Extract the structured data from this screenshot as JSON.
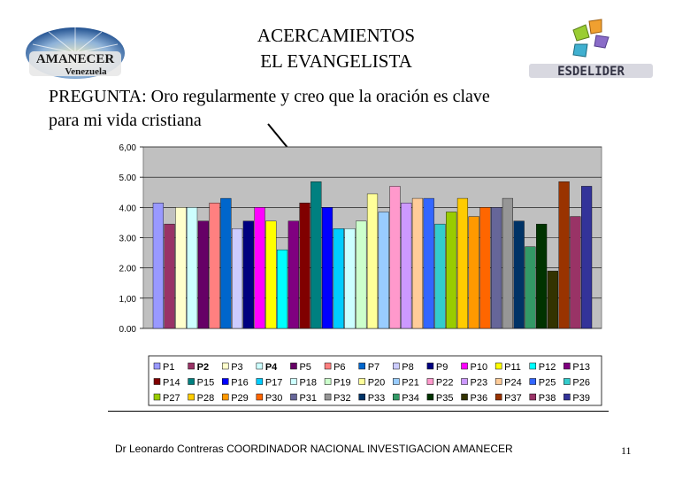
{
  "header": {
    "title_line1": "ACERCAMIENTOS",
    "title_line2": "EL EVANGELISTA"
  },
  "logos": {
    "left_text_main": "AMANECER",
    "left_text_sub": "Venezuela",
    "right_text": "ESDELIDER"
  },
  "question": {
    "line1": "PREGUNTA: Oro regularmente y creo que la oración es clave",
    "line2": "para mi vida cristiana"
  },
  "footer": {
    "credit": "Dr Leonardo Contreras   COORDINADOR NACIONAL INVESTIGACION AMANECER",
    "page_number": "11"
  },
  "chart_data": {
    "type": "bar",
    "ylim": [
      0,
      6
    ],
    "yticks": [
      "0.00",
      "1,00",
      "2.00",
      "3.00",
      "4.00",
      "5.00",
      "6,00"
    ],
    "grid": true,
    "legend_placement": "bottom",
    "plot_background": "#c0c0c0",
    "series": [
      {
        "name": "P1",
        "value": 4.15,
        "color": "#9999ff"
      },
      {
        "name": "P2",
        "value": 3.45,
        "color": "#993366"
      },
      {
        "name": "P3",
        "value": 4.0,
        "color": "#ffffcc"
      },
      {
        "name": "P4",
        "value": 4.0,
        "color": "#ccffff"
      },
      {
        "name": "P5",
        "value": 3.55,
        "color": "#660066"
      },
      {
        "name": "P6",
        "value": 4.15,
        "color": "#ff8080"
      },
      {
        "name": "P7",
        "value": 4.3,
        "color": "#0066cc"
      },
      {
        "name": "P8",
        "value": 3.3,
        "color": "#ccccff"
      },
      {
        "name": "P9",
        "value": 3.55,
        "color": "#000080"
      },
      {
        "name": "P10",
        "value": 4.0,
        "color": "#ff00ff"
      },
      {
        "name": "P11",
        "value": 3.55,
        "color": "#ffff00"
      },
      {
        "name": "P12",
        "value": 2.6,
        "color": "#00ffff"
      },
      {
        "name": "P13",
        "value": 3.55,
        "color": "#800080"
      },
      {
        "name": "P14",
        "value": 4.15,
        "color": "#800000"
      },
      {
        "name": "P15",
        "value": 4.85,
        "color": "#008080"
      },
      {
        "name": "P16",
        "value": 4.0,
        "color": "#0000ff"
      },
      {
        "name": "P17",
        "value": 3.3,
        "color": "#00ccff"
      },
      {
        "name": "P18",
        "value": 3.3,
        "color": "#ccffff"
      },
      {
        "name": "P19",
        "value": 3.55,
        "color": "#ccffcc"
      },
      {
        "name": "P20",
        "value": 4.45,
        "color": "#ffff99"
      },
      {
        "name": "P21",
        "value": 3.85,
        "color": "#99ccff"
      },
      {
        "name": "P22",
        "value": 4.7,
        "color": "#ff99cc"
      },
      {
        "name": "P23",
        "value": 4.15,
        "color": "#cc99ff"
      },
      {
        "name": "P24",
        "value": 4.3,
        "color": "#ffcc99"
      },
      {
        "name": "P25",
        "value": 4.3,
        "color": "#3366ff"
      },
      {
        "name": "P26",
        "value": 3.45,
        "color": "#33cccc"
      },
      {
        "name": "P27",
        "value": 3.85,
        "color": "#99cc00"
      },
      {
        "name": "P28",
        "value": 4.3,
        "color": "#ffcc00"
      },
      {
        "name": "P29",
        "value": 3.7,
        "color": "#ff9900"
      },
      {
        "name": "P30",
        "value": 4.0,
        "color": "#ff6600"
      },
      {
        "name": "P31",
        "value": 4.0,
        "color": "#666699"
      },
      {
        "name": "P32",
        "value": 4.3,
        "color": "#969696"
      },
      {
        "name": "P33",
        "value": 3.55,
        "color": "#003366"
      },
      {
        "name": "P34",
        "value": 2.7,
        "color": "#339966"
      },
      {
        "name": "P35",
        "value": 3.45,
        "color": "#003300"
      },
      {
        "name": "P36",
        "value": 1.9,
        "color": "#333300"
      },
      {
        "name": "P37",
        "value": 4.85,
        "color": "#993300"
      },
      {
        "name": "P38",
        "value": 3.7,
        "color": "#993366"
      },
      {
        "name": "P39",
        "value": 4.7,
        "color": "#333399"
      }
    ]
  }
}
